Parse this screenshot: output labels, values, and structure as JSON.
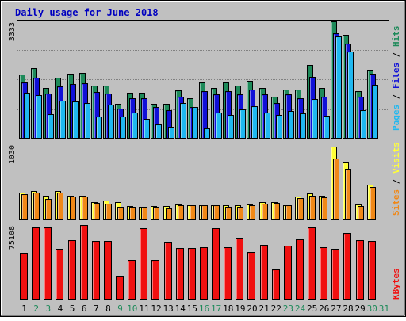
{
  "chart_data": {
    "type": "bar",
    "title": "Daily usage for June 2018",
    "categories": [
      "1",
      "2",
      "3",
      "4",
      "5",
      "6",
      "7",
      "8",
      "9",
      "10",
      "11",
      "12",
      "13",
      "14",
      "15",
      "16",
      "17",
      "18",
      "19",
      "20",
      "21",
      "22",
      "23",
      "24",
      "25",
      "26",
      "27",
      "28",
      "29",
      "30",
      "31"
    ],
    "weekend_days": [
      "2",
      "3",
      "9",
      "10",
      "16",
      "17",
      "23",
      "24",
      "30",
      "31"
    ],
    "panels": [
      {
        "id": "top",
        "ymax_label": "3333",
        "ylim": [
          0,
          3333
        ],
        "series": [
          {
            "name": "Hits",
            "color": "#1e8a5a",
            "values": [
              1830,
              2000,
              1450,
              1730,
              1850,
              1860,
              1520,
              1500,
              980,
              1300,
              1300,
              1000,
              1000,
              1380,
              1150,
              1600,
              1450,
              1590,
              1500,
              1640,
              1450,
              1200,
              1400,
              1400,
              2100,
              1450,
              3330,
              2940,
              1350,
              1950,
              0
            ]
          },
          {
            "name": "Files",
            "color": "#1010d8",
            "values": [
              1590,
              1730,
              1280,
              1480,
              1550,
              1580,
              1320,
              1280,
              850,
              1150,
              1150,
              900,
              800,
              1200,
              900,
              1350,
              1250,
              1340,
              1270,
              1400,
              1260,
              1020,
              1250,
              1150,
              1750,
              1200,
              3000,
              2700,
              1200,
              1850,
              0
            ]
          },
          {
            "name": "Pages",
            "color": "#20b8f0",
            "values": [
              1300,
              1240,
              700,
              1080,
              1050,
              1020,
              630,
              960,
              640,
              750,
              560,
              400,
              330,
              1020,
              910,
              300,
              750,
              680,
              840,
              930,
              740,
              680,
              780,
              720,
              1120,
              650,
              2910,
              2480,
              820,
              1530,
              0
            ]
          }
        ]
      },
      {
        "id": "middle",
        "ymax_label": "1030",
        "ylim": [
          0,
          1030
        ],
        "series": [
          {
            "name": "Visits",
            "color": "#ffff38",
            "values": [
              370,
              390,
              330,
              390,
              330,
              320,
              240,
              260,
              240,
              180,
              170,
              180,
              180,
              210,
              200,
              190,
              200,
              190,
              190,
              210,
              240,
              240,
              200,
              310,
              360,
              330,
              1000,
              780,
              210,
              480,
              0
            ]
          },
          {
            "name": "Sites",
            "color": "#f08818",
            "values": [
              350,
              370,
              280,
              370,
              310,
              310,
              230,
              220,
              170,
              170,
              170,
              170,
              150,
              190,
              190,
              190,
              190,
              170,
              170,
              200,
              220,
              230,
              200,
              290,
              330,
              300,
              840,
              690,
              180,
              440,
              0
            ]
          }
        ]
      },
      {
        "id": "bottom",
        "ymax_label": "75108",
        "ylim": [
          0,
          75108
        ],
        "series": [
          {
            "name": "KBytes",
            "color": "#f01010",
            "values": [
              47000,
              73000,
              73000,
              51000,
              60000,
              75000,
              59000,
              59000,
              24000,
              40000,
              72000,
              40000,
              58000,
              52000,
              52000,
              53000,
              72000,
              53000,
              62000,
              48000,
              55000,
              30000,
              54000,
              61000,
              73000,
              53000,
              51000,
              67000,
              60000,
              59000,
              0
            ]
          }
        ]
      }
    ],
    "legend_placement": "right",
    "grid": true
  },
  "labels": {
    "right_top": [
      {
        "text": "Pages",
        "color": "#20b8f0"
      },
      {
        "text": " / ",
        "color": "#000000"
      },
      {
        "text": "Files",
        "color": "#1010d8"
      },
      {
        "text": " / ",
        "color": "#000000"
      },
      {
        "text": "Hits",
        "color": "#1e8a5a"
      }
    ],
    "right_middle": [
      {
        "text": "Sites",
        "color": "#f08818"
      },
      {
        "text": " / ",
        "color": "#000000"
      },
      {
        "text": "Visits",
        "color": "#ffff38"
      }
    ],
    "right_bottom": [
      {
        "text": "KBytes",
        "color": "#f01010"
      }
    ]
  },
  "colors": {
    "background": "#c0c0c0",
    "plot_bg": "#c0c0c0",
    "title": "#0000c0",
    "weekday_label": "#000000",
    "weekend_label": "#1e8a5a"
  }
}
